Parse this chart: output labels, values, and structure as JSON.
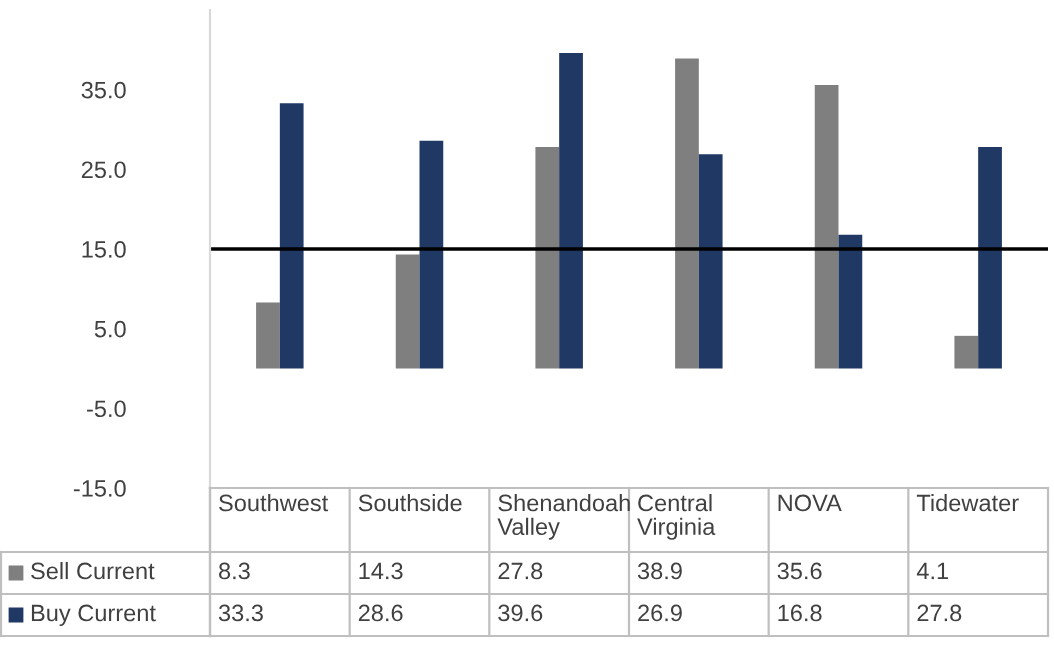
{
  "chart_data": {
    "type": "bar",
    "categories": [
      "Southwest",
      "Southside",
      "Shenandoah Valley",
      "Central Virginia",
      "NOVA",
      "Tidewater"
    ],
    "series": [
      {
        "name": "Sell Current",
        "color": "#7f7f7f",
        "values": [
          8.3,
          14.3,
          27.8,
          38.9,
          35.6,
          4.1
        ]
      },
      {
        "name": "Buy Current",
        "color": "#203864",
        "values": [
          33.3,
          28.6,
          39.6,
          26.9,
          16.8,
          27.8
        ]
      }
    ],
    "ylim": [
      -15,
      45
    ],
    "yticks": [
      {
        "value": -15,
        "label": "-15.0"
      },
      {
        "value": -5,
        "label": "-5.0"
      },
      {
        "value": 5,
        "label": "5.0"
      },
      {
        "value": 15,
        "label": "15.0"
      },
      {
        "value": 25,
        "label": "25.0"
      },
      {
        "value": 35,
        "label": "35.0"
      }
    ],
    "ref_lines": [
      {
        "axis": "y",
        "value": 15,
        "color": "#000000"
      }
    ],
    "data_labels": true,
    "legend": "bottom",
    "grid": false
  }
}
